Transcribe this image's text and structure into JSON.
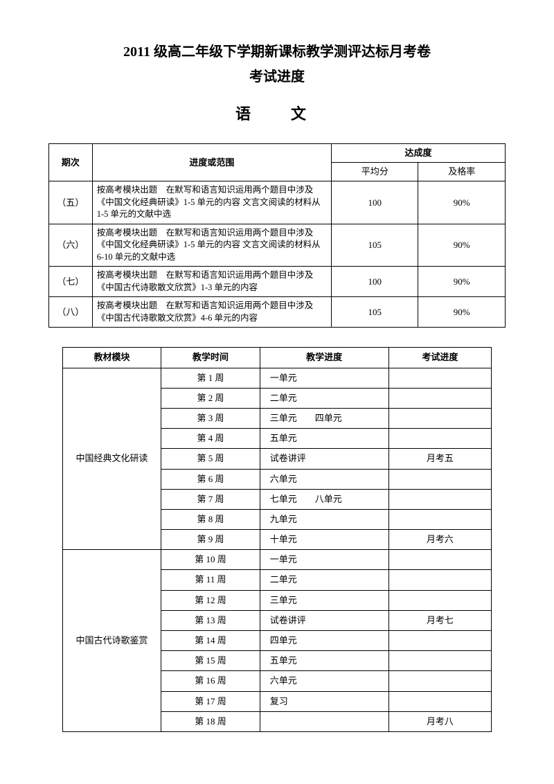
{
  "titles": {
    "main": "2011 级高二年级下学期新课标教学测评达标月考卷",
    "sub": "考试进度",
    "subject": "语　文"
  },
  "table1": {
    "headers": {
      "period": "期次",
      "scope": "进度或范围",
      "achievement": "达成度",
      "avg": "平均分",
      "pass": "及格率"
    },
    "rows": [
      {
        "period": "（五）",
        "scope": "按高考模块出题　在默写和语言知识运用两个题目中涉及《中国文化经典研读》1-5 单元的内容  文言文阅读的材料从 1-5 单元的文献中选",
        "avg": "100",
        "pass": "90%"
      },
      {
        "period": "（六）",
        "scope": "按高考模块出题　在默写和语言知识运用两个题目中涉及《中国文化经典研读》1-5 单元的内容  文言文阅读的材料从 6-10 单元的文献中选",
        "avg": "105",
        "pass": "90%"
      },
      {
        "period": "（七）",
        "scope": "按高考模块出题　在默写和语言知识运用两个题目中涉及《中国古代诗歌散文欣赏》1-3 单元的内容",
        "avg": "100",
        "pass": "90%"
      },
      {
        "period": "（八）",
        "scope": "按高考模块出题　在默写和语言知识运用两个题目中涉及《中国古代诗歌散文欣赏》4-6 单元的内容",
        "avg": "105",
        "pass": "90%"
      }
    ]
  },
  "table2": {
    "headers": {
      "module": "教材模块",
      "time": "教学时间",
      "progress": "教学进度",
      "exam": "考试进度"
    },
    "modules": [
      {
        "name": "中国经典文化研读",
        "rows": [
          {
            "time": "第 1 周",
            "progress": "一单元",
            "exam": ""
          },
          {
            "time": "第 2 周",
            "progress": "二单元",
            "exam": ""
          },
          {
            "time": "第 3 周",
            "progress": "三单元　　四单元",
            "exam": ""
          },
          {
            "time": "第 4 周",
            "progress": "五单元",
            "exam": ""
          },
          {
            "time": "第 5 周",
            "progress": "试卷讲评",
            "exam": "月考五"
          },
          {
            "time": "第 6 周",
            "progress": "六单元",
            "exam": ""
          },
          {
            "time": "第 7 周",
            "progress": "七单元　　八单元",
            "exam": ""
          },
          {
            "time": "第 8 周",
            "progress": "九单元",
            "exam": ""
          },
          {
            "time": "第 9 周",
            "progress": "十单元",
            "exam": "月考六"
          }
        ]
      },
      {
        "name": "中国古代诗歌鉴赏",
        "rows": [
          {
            "time": "第 10 周",
            "progress": "一单元",
            "exam": ""
          },
          {
            "time": "第 11 周",
            "progress": "二单元",
            "exam": ""
          },
          {
            "time": "第 12 周",
            "progress": "三单元",
            "exam": ""
          },
          {
            "time": "第 13 周",
            "progress": "试卷讲评",
            "exam": "月考七"
          },
          {
            "time": "第 14 周",
            "progress": "四单元",
            "exam": ""
          },
          {
            "time": "第 15 周",
            "progress": "五单元",
            "exam": ""
          },
          {
            "time": "第 16 周",
            "progress": "六单元",
            "exam": ""
          },
          {
            "time": "第 17 周",
            "progress": "复习",
            "exam": ""
          },
          {
            "time": "第 18 周",
            "progress": "",
            "exam": "月考八"
          }
        ]
      }
    ]
  }
}
